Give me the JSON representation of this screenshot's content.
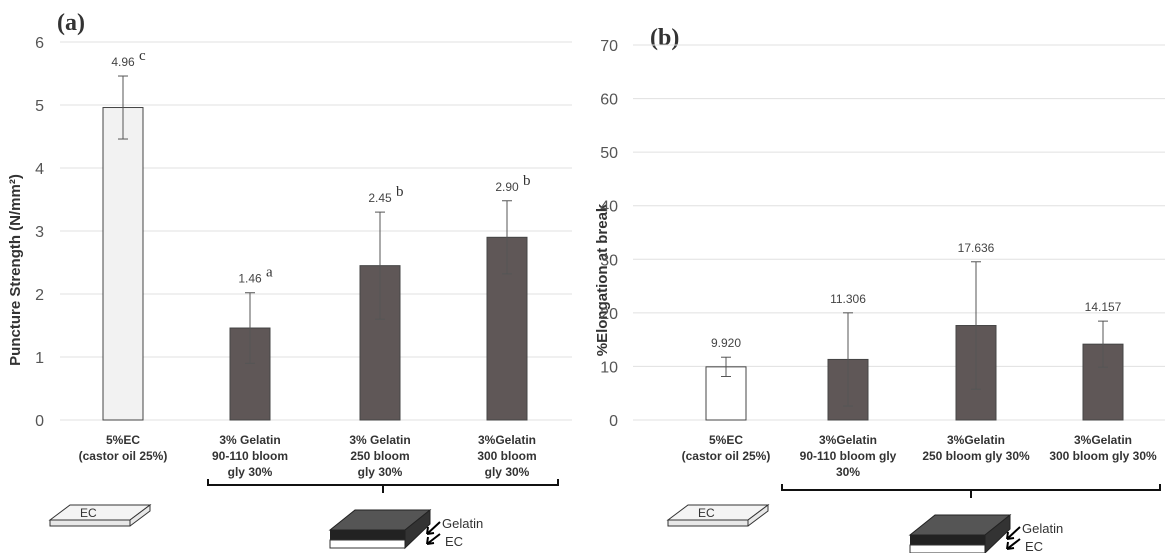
{
  "chart_data": [
    {
      "type": "bar",
      "panel_label": "(a)",
      "ylabel": "Puncture Strength (N/mm²)",
      "categories": [
        "5%EC\n(castor oil 25%)",
        "3% Gelatin\n90-110 bloom\ngly 30%",
        "3% Gelatin\n250 bloom\ngly 30%",
        "3%Gelatin\n300 bloom\ngly 30%"
      ],
      "values": [
        4.96,
        1.46,
        2.45,
        2.9
      ],
      "value_labels": [
        "4.96",
        "1.46",
        "2.45",
        "2.90"
      ],
      "errors": [
        0.5,
        0.56,
        0.85,
        0.58
      ],
      "letters": [
        "c",
        "a",
        "b",
        "b"
      ],
      "colors": [
        "#f2f2f2",
        "#5f5757",
        "#5f5757",
        "#5f5757"
      ],
      "ylim": [
        0,
        6
      ],
      "yticks": [
        0,
        1,
        2,
        3,
        4,
        5,
        6
      ],
      "grid": true,
      "annotations": [
        "EC",
        "Gelatin",
        "EC"
      ]
    },
    {
      "type": "bar",
      "panel_label": "(b)",
      "ylabel": "%Elongation at break",
      "categories": [
        "5%EC\n(castor oil 25%)",
        "3%Gelatin\n90-110 bloom gly\n30%",
        "3%Gelatin\n250 bloom gly 30%",
        "3%Gelatin\n300 bloom gly 30%"
      ],
      "values": [
        9.92,
        11.306,
        17.636,
        14.157
      ],
      "value_labels": [
        "9.920",
        "11.306",
        "17.636",
        "14.157"
      ],
      "errors": [
        1.8,
        8.7,
        11.9,
        4.3
      ],
      "colors": [
        "#ffffff",
        "#5f5757",
        "#5f5757",
        "#5f5757"
      ],
      "ylim": [
        0,
        70
      ],
      "yticks": [
        0,
        10,
        20,
        30,
        40,
        50,
        60,
        70
      ],
      "grid": true,
      "annotations": [
        "EC",
        "Gelatin",
        "EC"
      ]
    }
  ]
}
